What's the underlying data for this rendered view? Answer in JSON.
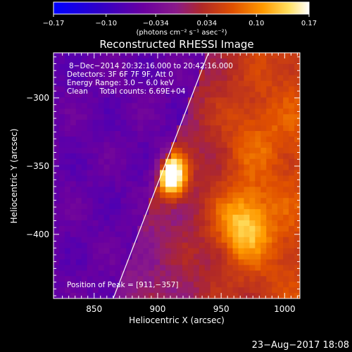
{
  "chart_data": {
    "type": "heatmap",
    "title": "Reconstructed RHESSI Image",
    "xlabel": "Heliocentric X (arcsec)",
    "ylabel": "Heliocentric Y (arcsec)",
    "xlim": [
      818,
      1012
    ],
    "ylim": [
      -447,
      -267
    ],
    "xticks": [
      850,
      900,
      950,
      1000
    ],
    "yticks": [
      -300,
      -350,
      -400
    ],
    "xtick_labels": [
      "850",
      "900",
      "950",
      "1000"
    ],
    "ytick_labels": [
      "−300",
      "−350",
      "−400"
    ],
    "colorbar": {
      "range": [
        -0.17,
        0.17
      ],
      "tick_values": [
        -0.17,
        -0.1,
        -0.034,
        0.034,
        0.1,
        0.17
      ],
      "tick_labels": [
        "−0.17",
        "−0.10",
        "−0.034",
        "0.034",
        "0.10",
        "0.17"
      ],
      "unit_label": "(photons cm⁻² s⁻¹ asec⁻²)",
      "colors": [
        "#0000ff",
        "#2b00d0",
        "#6a00a0",
        "#8a1a8a",
        "#b02828",
        "#e05000",
        "#ff9a00",
        "#ffe060",
        "#ffffff"
      ]
    },
    "annotations": [
      "8−Dec−2014 20:32:16.000 to 20:42:16.000",
      "Detectors: 3F 6F 7F 9F, Att 0",
      "Energy Range: 3.0 − 6.0 keV",
      "Clean     Total counts: 6.69E+04"
    ],
    "peak_label": "Position of Peak = [911,−357]",
    "peak": [
      911,
      -357
    ],
    "secondary_peak": [
      968,
      -393
    ],
    "limb_line": [
      [
        865,
        -447
      ],
      [
        940,
        -267
      ]
    ],
    "grid": false
  },
  "timestamp": "23−Aug−2017 18:08"
}
